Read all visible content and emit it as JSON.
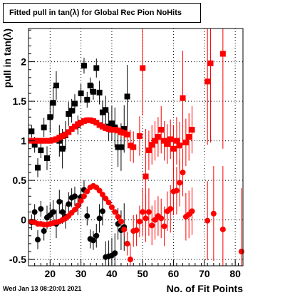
{
  "title": "Fitted pull in tan(λ) for Global Rec Pion NoHits",
  "footer": "Wed Jan 13 08:20:01 2021",
  "chart_data": {
    "type": "scatter",
    "xlabel": "No. of Fit Points",
    "ylabel": "pull in tan(λ)",
    "xlim": [
      13,
      82.5
    ],
    "ylim": [
      -0.58,
      2.42
    ],
    "x_ticks": [
      20,
      30,
      40,
      50,
      60,
      70,
      80
    ],
    "y_ticks": [
      -0.5,
      0,
      0.5,
      1,
      1.5,
      2
    ],
    "y_tick_labels": [
      "-0.5",
      "0",
      "0.5",
      "1",
      "1.5",
      "2"
    ],
    "grid": true,
    "colors": {
      "black": "#000000",
      "red": "#ff0000"
    },
    "series": [
      {
        "marker": "square",
        "color": "#000000",
        "points": [
          [
            14,
            1.12,
            0.08
          ],
          [
            15,
            0.95,
            0.1
          ],
          [
            16,
            0.66,
            0.12
          ],
          [
            17,
            0.88,
            0.1
          ],
          [
            18,
            1.17,
            0.12
          ],
          [
            19,
            0.78,
            0.15
          ],
          [
            20,
            1.3,
            0.2
          ],
          [
            21,
            1.48,
            0.2
          ],
          [
            22,
            1.7,
            0.18
          ],
          [
            23,
            1.0,
            0.2
          ],
          [
            24,
            0.9,
            0.25
          ],
          [
            25,
            1.07,
            0.18
          ],
          [
            26,
            1.34,
            0.15
          ],
          [
            27,
            1.38,
            0.15
          ],
          [
            28,
            1.47,
            0.12
          ],
          [
            29,
            1.2,
            0.12
          ],
          [
            30,
            1.6,
            0.12
          ],
          [
            31,
            1.95,
            0.1
          ],
          [
            32,
            1.52,
            0.1
          ],
          [
            33,
            1.7,
            0.1
          ],
          [
            34,
            1.62,
            0.1
          ],
          [
            35,
            1.92,
            0.12
          ],
          [
            36,
            1.61,
            0.15
          ],
          [
            37,
            1.36,
            0.15
          ],
          [
            38,
            1.39,
            0.18
          ],
          [
            39,
            1.18,
            0.18
          ],
          [
            40,
            1.22,
            0.22
          ],
          [
            41,
            1.17,
            0.25
          ],
          [
            42,
            0.92,
            0.25
          ],
          [
            43,
            0.92,
            0.3
          ],
          [
            44,
            1.15,
            0.3
          ],
          [
            45,
            1.56,
            0.4
          ]
        ]
      },
      {
        "marker": "circle",
        "color": "#000000",
        "points": [
          [
            14,
            -0.03,
            0.1
          ],
          [
            15,
            0.1,
            0.1
          ],
          [
            16,
            -0.25,
            0.12
          ],
          [
            17,
            0.14,
            0.1
          ],
          [
            18,
            -0.14,
            0.12
          ],
          [
            19,
            0.03,
            0.15
          ],
          [
            20,
            0.06,
            0.15
          ],
          [
            21,
            0.1,
            0.15
          ],
          [
            22,
            -0.05,
            0.18
          ],
          [
            23,
            0.23,
            0.15
          ],
          [
            24,
            0.1,
            0.15
          ],
          [
            25,
            0.04,
            0.15
          ],
          [
            26,
            0.2,
            0.15
          ],
          [
            27,
            0.28,
            0.12
          ],
          [
            28,
            0.3,
            0.12
          ],
          [
            29,
            0.18,
            0.12
          ],
          [
            30,
            0.29,
            0.12
          ],
          [
            31,
            0.38,
            0.12
          ],
          [
            32,
            0.05,
            0.12
          ],
          [
            33,
            -0.24,
            0.12
          ],
          [
            34,
            -0.26,
            0.12
          ],
          [
            35,
            -0.2,
            0.15
          ],
          [
            36,
            0.02,
            0.18
          ],
          [
            37,
            0.11,
            0.18
          ],
          [
            38,
            -0.47,
            0.2
          ],
          [
            39,
            -0.46,
            0.2
          ],
          [
            40,
            -0.45,
            0.22
          ],
          [
            41,
            -0.42,
            0.25
          ],
          [
            42,
            -0.05,
            0.2
          ],
          [
            43,
            -0.13,
            0.25
          ],
          [
            44,
            -0.09,
            0.3
          ]
        ]
      },
      {
        "marker": "square",
        "color": "#ff0000",
        "points": [
          [
            14,
            1.0,
            0.03
          ],
          [
            15,
            1.0,
            0.03
          ],
          [
            16,
            1.0,
            0.03
          ],
          [
            17,
            1.0,
            0.03
          ],
          [
            18,
            1.0,
            0.03
          ],
          [
            19,
            1.0,
            0.03
          ],
          [
            20,
            1.0,
            0.03
          ],
          [
            21,
            1.01,
            0.03
          ],
          [
            22,
            1.02,
            0.03
          ],
          [
            23,
            1.04,
            0.03
          ],
          [
            24,
            1.06,
            0.03
          ],
          [
            25,
            1.08,
            0.03
          ],
          [
            26,
            1.11,
            0.03
          ],
          [
            27,
            1.15,
            0.03
          ],
          [
            28,
            1.18,
            0.03
          ],
          [
            29,
            1.21,
            0.03
          ],
          [
            30,
            1.23,
            0.03
          ],
          [
            31,
            1.25,
            0.03
          ],
          [
            32,
            1.26,
            0.03
          ],
          [
            33,
            1.26,
            0.03
          ],
          [
            34,
            1.25,
            0.03
          ],
          [
            35,
            1.23,
            0.03
          ],
          [
            36,
            1.2,
            0.03
          ],
          [
            37,
            1.18,
            0.03
          ],
          [
            38,
            1.16,
            0.03
          ],
          [
            39,
            1.15,
            0.03
          ],
          [
            40,
            1.14,
            0.03
          ],
          [
            41,
            1.14,
            0.04
          ],
          [
            42,
            1.13,
            0.05
          ],
          [
            43,
            1.11,
            0.06
          ],
          [
            44,
            1.1,
            0.08
          ],
          [
            45,
            1.08,
            0.1
          ],
          [
            46,
            0.94,
            0.2
          ],
          [
            47,
            0.92,
            0.2
          ],
          [
            49,
            1.06,
            0.25
          ],
          [
            50,
            1.92,
            0.6
          ],
          [
            51,
            0.55,
            0.6
          ],
          [
            52,
            0.88,
            0.25
          ],
          [
            53,
            0.95,
            0.25
          ],
          [
            54,
            1.0,
            0.25
          ],
          [
            55,
            1.05,
            0.25
          ],
          [
            56,
            1.14,
            0.3
          ],
          [
            57,
            1.0,
            0.25
          ],
          [
            58,
            0.96,
            0.25
          ],
          [
            59,
            1.02,
            0.25
          ],
          [
            60,
            0.9,
            0.3
          ],
          [
            61,
            1.0,
            0.3
          ],
          [
            62,
            0.94,
            0.3
          ],
          [
            63,
            1.54,
            0.6
          ],
          [
            64,
            0.98,
            0.3
          ],
          [
            65,
            1.05,
            0.3
          ],
          [
            66,
            1.14,
            0.3
          ],
          [
            71,
            1.75,
            0.8
          ],
          [
            72,
            1.98,
            1.0
          ],
          [
            76,
            2.1,
            1.2
          ]
        ]
      },
      {
        "marker": "circle",
        "color": "#ff0000",
        "points": [
          [
            14,
            -0.02,
            0.02
          ],
          [
            15,
            -0.03,
            0.02
          ],
          [
            16,
            -0.05,
            0.02
          ],
          [
            17,
            -0.05,
            0.02
          ],
          [
            18,
            -0.06,
            0.02
          ],
          [
            19,
            -0.06,
            0.02
          ],
          [
            20,
            -0.05,
            0.02
          ],
          [
            21,
            -0.04,
            0.02
          ],
          [
            22,
            -0.03,
            0.02
          ],
          [
            23,
            -0.02,
            0.02
          ],
          [
            24,
            0.0,
            0.02
          ],
          [
            25,
            0.02,
            0.02
          ],
          [
            26,
            0.05,
            0.02
          ],
          [
            27,
            0.09,
            0.02
          ],
          [
            28,
            0.13,
            0.02
          ],
          [
            29,
            0.18,
            0.02
          ],
          [
            30,
            0.24,
            0.02
          ],
          [
            31,
            0.3,
            0.02
          ],
          [
            32,
            0.36,
            0.02
          ],
          [
            33,
            0.41,
            0.02
          ],
          [
            34,
            0.43,
            0.02
          ],
          [
            35,
            0.41,
            0.02
          ],
          [
            36,
            0.37,
            0.02
          ],
          [
            37,
            0.32,
            0.02
          ],
          [
            38,
            0.27,
            0.02
          ],
          [
            39,
            0.22,
            0.02
          ],
          [
            40,
            0.16,
            0.03
          ],
          [
            41,
            0.1,
            0.03
          ],
          [
            42,
            0.04,
            0.04
          ],
          [
            43,
            -0.02,
            0.05
          ],
          [
            44,
            -0.12,
            0.08
          ],
          [
            45,
            -0.3,
            0.15
          ],
          [
            46,
            -0.5,
            0.2
          ],
          [
            47,
            -0.14,
            0.2
          ],
          [
            48,
            -0.13,
            0.2
          ],
          [
            49,
            -0.02,
            0.2
          ],
          [
            50,
            0.1,
            0.3
          ],
          [
            51,
            0.02,
            0.3
          ],
          [
            52,
            0.1,
            0.3
          ],
          [
            53,
            -0.07,
            0.25
          ],
          [
            54,
            0.0,
            0.25
          ],
          [
            55,
            0.05,
            0.25
          ],
          [
            56,
            0.02,
            0.25
          ],
          [
            57,
            -0.08,
            0.25
          ],
          [
            58,
            0.11,
            0.25
          ],
          [
            59,
            0.14,
            0.3
          ],
          [
            60,
            0.36,
            0.3
          ],
          [
            61,
            0.37,
            0.3
          ],
          [
            62,
            0.47,
            0.3
          ],
          [
            63,
            0.6,
            0.3
          ],
          [
            64,
            0.04,
            0.3
          ],
          [
            65,
            0.07,
            0.3
          ],
          [
            66,
            0.11,
            0.3
          ],
          [
            71,
            -0.01,
            0.5
          ],
          [
            73,
            0.08,
            0.6
          ],
          [
            76,
            -0.12,
            0.8
          ],
          [
            82,
            -0.4,
            0.8
          ]
        ]
      }
    ]
  }
}
